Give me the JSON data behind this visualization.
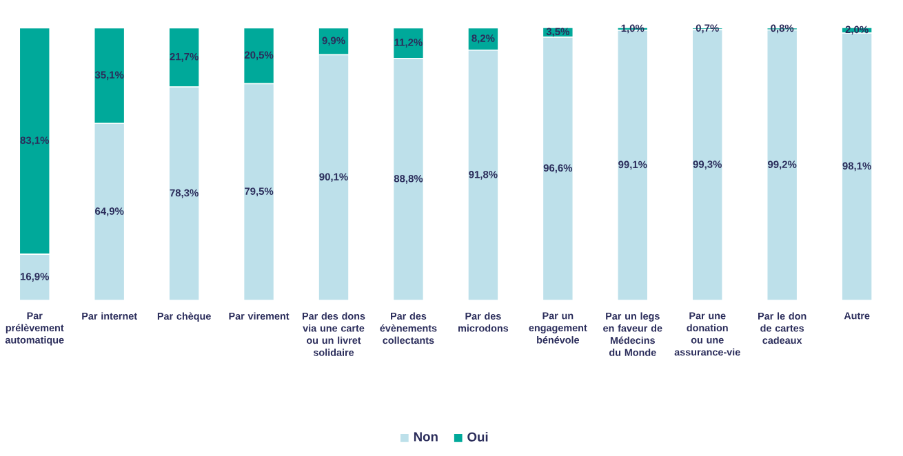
{
  "chart_data": {
    "type": "bar",
    "stacked": true,
    "legend": "bottom",
    "categories": [
      "Par prélèvement automatique",
      "Par internet",
      "Par chèque",
      "Par virement",
      "Par des dons via une carte ou un livret solidaire",
      "Par des évènements collectants",
      "Par des microdons",
      "Par un engagement bénévole",
      "Par un legs en faveur de Médecins du Monde",
      "Par une donation ou une assurance-vie",
      "Par le don de cartes cadeaux",
      "Autre"
    ],
    "series": [
      {
        "name": "Non",
        "color": "#bde0ea",
        "values": [
          16.9,
          64.9,
          78.3,
          79.5,
          90.1,
          88.8,
          91.8,
          96.6,
          99.1,
          99.3,
          99.2,
          98.1
        ],
        "value_labels": [
          "16,9%",
          "64,9%",
          "78,3%",
          "79,5%",
          "90,1%",
          "88,8%",
          "91,8%",
          "96,6%",
          "99,1%",
          "99,3%",
          "99,2%",
          "98,1%"
        ]
      },
      {
        "name": "Oui",
        "color": "#00a99a",
        "values": [
          83.1,
          35.1,
          21.7,
          20.5,
          9.9,
          11.2,
          8.2,
          3.5,
          1.0,
          0.7,
          0.8,
          2.0
        ],
        "value_labels": [
          "83,1%",
          "35,1%",
          "21,7%",
          "20,5%",
          "9,9%",
          "11,2%",
          "8,2%",
          "3,5%",
          "1,0%",
          "0,7%",
          "0,8%",
          "2,0%"
        ]
      }
    ]
  }
}
